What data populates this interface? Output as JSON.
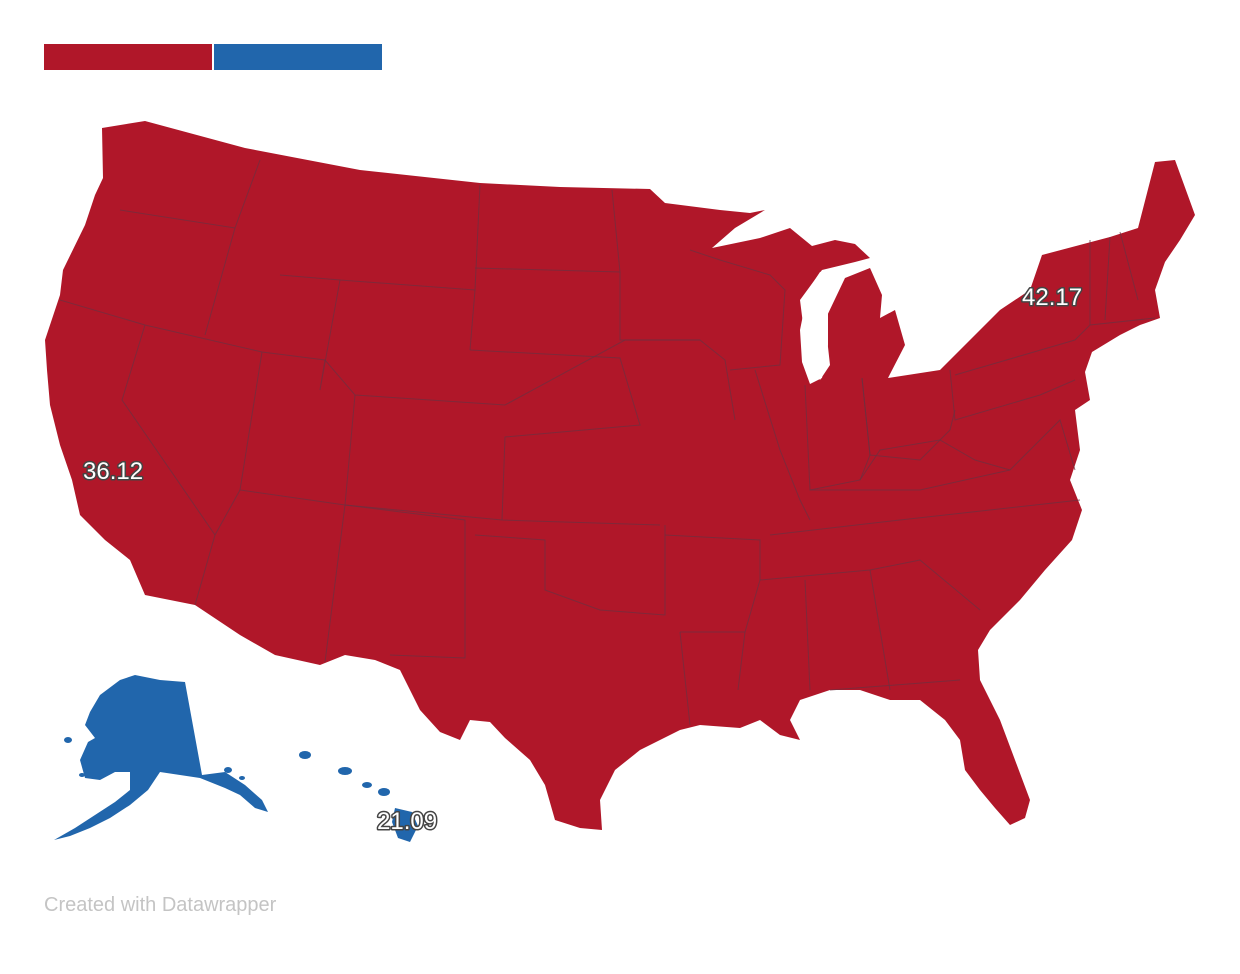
{
  "legend": {
    "swatches": [
      {
        "name": "red-category",
        "color": "#b01729"
      },
      {
        "name": "blue-category",
        "color": "#2166ac"
      }
    ]
  },
  "map": {
    "colors": {
      "red": "#b01729",
      "blue": "#2166ac",
      "border": "#6e3040",
      "label_outline": "#444444"
    },
    "labels": {
      "ny": "42.17",
      "ca": "36.12",
      "hi": "21.09"
    },
    "regions": {
      "contiguous_us": "red",
      "alaska": "blue",
      "hawaii": "blue"
    }
  },
  "footer": {
    "credit": "Created with Datawrapper"
  }
}
